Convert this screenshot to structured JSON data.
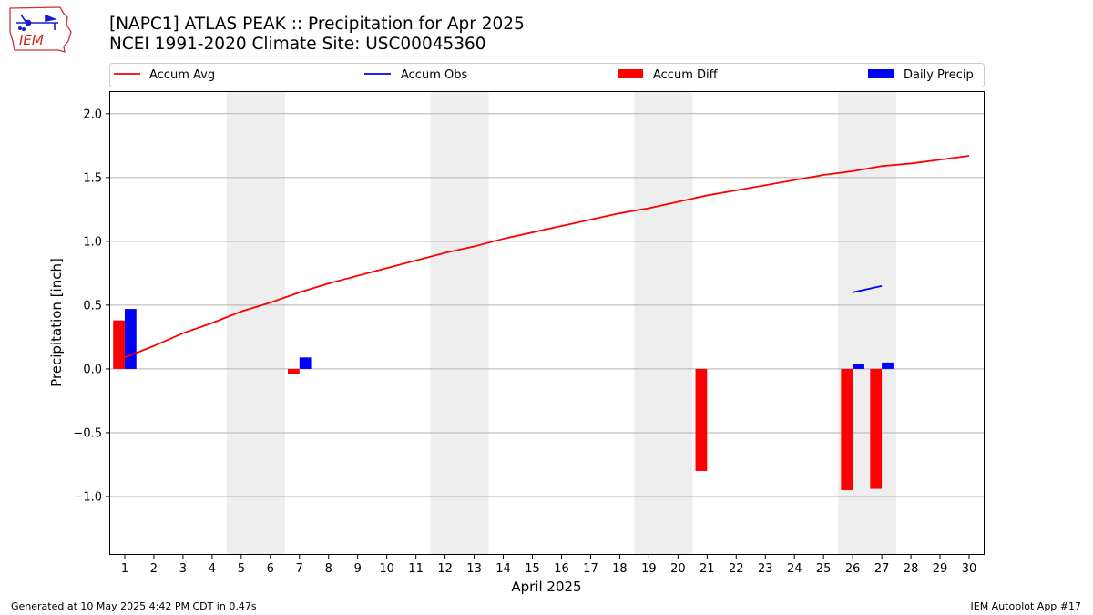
{
  "header": {
    "title_line1": "[NAPC1] ATLAS PEAK :: Precipitation for Apr 2025",
    "title_line2": "NCEI 1991-2020 Climate Site: USC00045360"
  },
  "logo": {
    "text": "IEM",
    "icon": "iem-iowa-map-logo"
  },
  "footer": {
    "generated": "Generated at 10 May 2025 4:42 PM CDT in 0.47s",
    "app": "IEM Autoplot App #17"
  },
  "colors": {
    "accum_avg": "#ff0000",
    "accum_obs": "#0000ff",
    "accum_diff": "#ff0000",
    "daily_precip": "#0000ff",
    "weekend_shade": "#eeeeee",
    "grid": "#b0b0b0"
  },
  "chart_data": {
    "type": "bar",
    "xlabel": "April 2025",
    "ylabel": "Precipitation [inch]",
    "xlim": [
      0.5,
      30.5
    ],
    "ylim": [
      -1.45,
      2.17
    ],
    "yticks": [
      -1.0,
      -0.5,
      0.0,
      0.5,
      1.0,
      1.5,
      2.0
    ],
    "ytick_labels": [
      "−1.0",
      "−0.5",
      "0.0",
      "0.5",
      "1.0",
      "1.5",
      "2.0"
    ],
    "grid": "horizontal",
    "legend_position": "top",
    "x": [
      1,
      2,
      3,
      4,
      5,
      6,
      7,
      8,
      9,
      10,
      11,
      12,
      13,
      14,
      15,
      16,
      17,
      18,
      19,
      20,
      21,
      22,
      23,
      24,
      25,
      26,
      27,
      28,
      29,
      30
    ],
    "weekend_spans": [
      [
        4.5,
        6.5
      ],
      [
        11.5,
        13.5
      ],
      [
        18.5,
        20.5
      ],
      [
        25.5,
        27.5
      ]
    ],
    "series": [
      {
        "name": "Accum Avg",
        "kind": "line",
        "x": [
          1,
          2,
          3,
          4,
          5,
          6,
          7,
          8,
          9,
          10,
          11,
          12,
          13,
          14,
          15,
          16,
          17,
          18,
          19,
          20,
          21,
          22,
          23,
          24,
          25,
          26,
          27,
          28,
          29,
          30
        ],
        "values": [
          0.09,
          0.18,
          0.28,
          0.36,
          0.45,
          0.52,
          0.6,
          0.67,
          0.73,
          0.79,
          0.85,
          0.91,
          0.96,
          1.02,
          1.07,
          1.12,
          1.17,
          1.22,
          1.26,
          1.31,
          1.36,
          1.4,
          1.44,
          1.48,
          1.52,
          1.55,
          1.59,
          1.61,
          1.64,
          1.67
        ]
      },
      {
        "name": "Accum Obs",
        "kind": "line",
        "x": [
          26,
          27
        ],
        "values": [
          0.6,
          0.65
        ]
      },
      {
        "name": "Accum Diff",
        "kind": "bar",
        "x": [
          1,
          7,
          21,
          26,
          27
        ],
        "values": [
          0.38,
          -0.04,
          -0.8,
          -0.95,
          -0.94
        ]
      },
      {
        "name": "Daily Precip",
        "kind": "bar",
        "x": [
          1,
          7,
          26,
          27
        ],
        "values": [
          0.47,
          0.09,
          0.04,
          0.05
        ]
      }
    ]
  }
}
